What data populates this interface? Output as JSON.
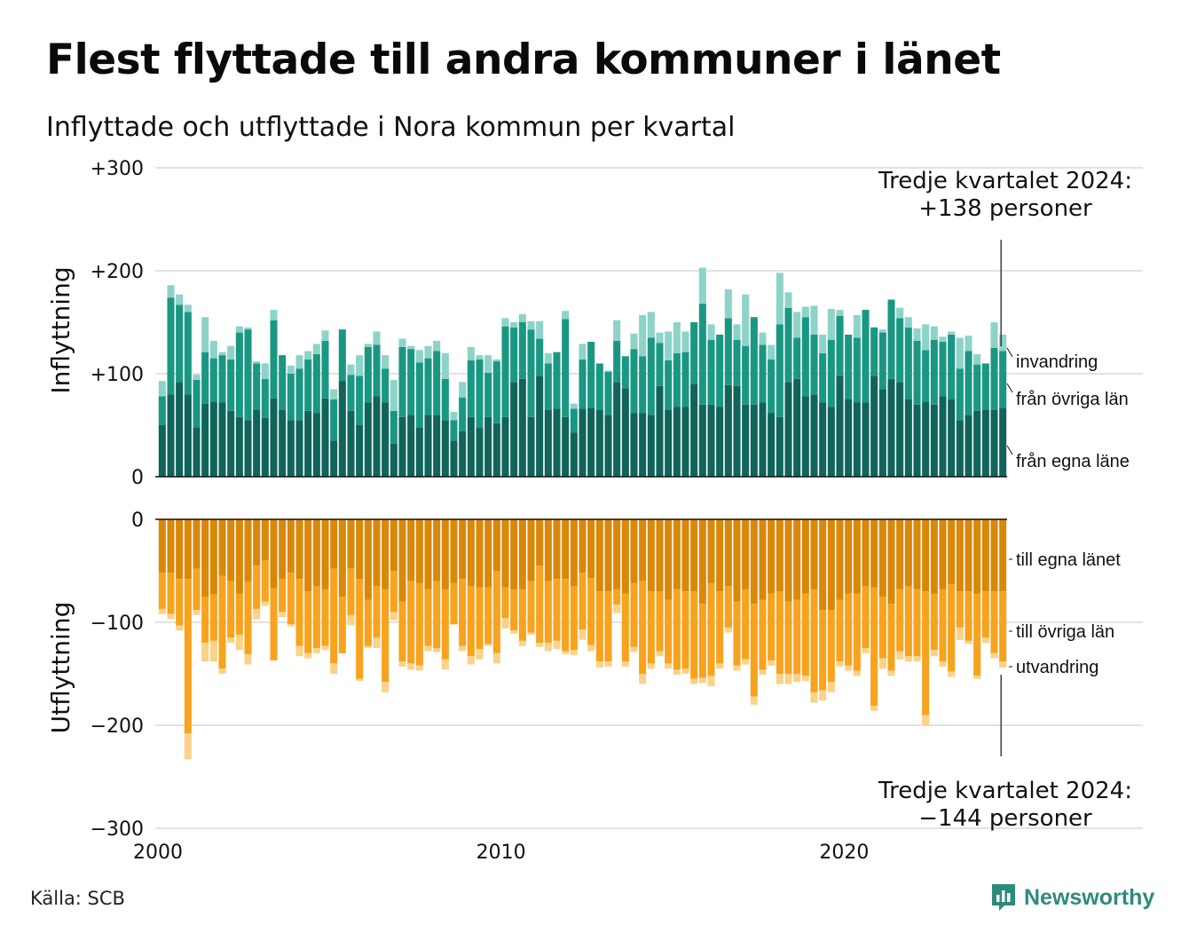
{
  "title": "Flest flyttade till andra kommuner i länet",
  "subtitle": "Inflyttade och utflyttade i Nora kommun per kvartal",
  "source": "Källa: SCB",
  "brand": "Newsworthy",
  "chart_data": {
    "type": "bar",
    "stacked": true,
    "x_start": "2000 Q1",
    "x_end": "2024 Q3",
    "xtick_labels": [
      "2000",
      "2010",
      "2020"
    ],
    "ylabels": {
      "top": "Inflyttning",
      "bottom": "Utflyttning"
    },
    "top_ytick_labels": [
      "+300",
      "+200",
      "+100",
      "0"
    ],
    "bottom_ytick_labels": [
      "0",
      "−100",
      "−200",
      "−300"
    ],
    "top_ylim": [
      0,
      300
    ],
    "bottom_ylim": [
      0,
      -300
    ],
    "grid": true,
    "colors": {
      "in_egna": "#10645a",
      "in_ovriga": "#1a9783",
      "in_invandring": "#8ed3c8",
      "out_egna": "#d9880a",
      "out_ovriga": "#f7a31f",
      "out_utvandring": "#fbd28a"
    },
    "inflow_series": [
      {
        "name": "från egna läne",
        "values": [
          50,
          80,
          92,
          80,
          48,
          71,
          73,
          72,
          64,
          58,
          55,
          65,
          57,
          76,
          65,
          55,
          55,
          64,
          62,
          76,
          35,
          93,
          64,
          50,
          72,
          78,
          72,
          32,
          58,
          60,
          48,
          60,
          60,
          55,
          35,
          44,
          58,
          48,
          58,
          52,
          58,
          92,
          95,
          58,
          98,
          65,
          66,
          58,
          43,
          66,
          67,
          65,
          60,
          92,
          86,
          62,
          62,
          60,
          88,
          65,
          68,
          68,
          90,
          70,
          70,
          68,
          89,
          88,
          70,
          70,
          72,
          62,
          58,
          92,
          95,
          78,
          80,
          72,
          68,
          98,
          75,
          72,
          72,
          98,
          85,
          95,
          92,
          75,
          70,
          73,
          70,
          78,
          75,
          55,
          60,
          64,
          65,
          65,
          67
        ]
      },
      {
        "name": "från övriga län",
        "values": [
          28,
          94,
          75,
          80,
          46,
          50,
          42,
          46,
          50,
          82,
          88,
          45,
          38,
          76,
          53,
          45,
          50,
          50,
          57,
          56,
          40,
          50,
          35,
          48,
          54,
          50,
          33,
          32,
          68,
          64,
          63,
          55,
          62,
          40,
          20,
          33,
          55,
          66,
          43,
          60,
          88,
          53,
          55,
          85,
          36,
          45,
          55,
          95,
          23,
          48,
          64,
          45,
          42,
          40,
          31,
          62,
          55,
          75,
          42,
          48,
          52,
          53,
          60,
          98,
          63,
          70,
          65,
          45,
          57,
          85,
          56,
          52,
          90,
          72,
          40,
          77,
          58,
          48,
          65,
          58,
          63,
          63,
          90,
          47,
          55,
          77,
          62,
          70,
          62,
          50,
          63,
          53,
          63,
          50,
          62,
          45,
          45,
          60,
          55
        ]
      },
      {
        "name": "invandring",
        "values": [
          15,
          12,
          10,
          7,
          5,
          34,
          17,
          3,
          13,
          6,
          2,
          2,
          15,
          10,
          0,
          8,
          13,
          8,
          10,
          10,
          10,
          0,
          10,
          20,
          3,
          13,
          13,
          30,
          8,
          3,
          12,
          12,
          10,
          25,
          8,
          15,
          13,
          4,
          17,
          2,
          8,
          5,
          8,
          8,
          17,
          10,
          0,
          8,
          5,
          15,
          0,
          0,
          1,
          20,
          0,
          15,
          40,
          25,
          10,
          28,
          30,
          20,
          0,
          35,
          15,
          0,
          28,
          15,
          50,
          0,
          12,
          14,
          50,
          15,
          25,
          10,
          28,
          18,
          30,
          6,
          0,
          22,
          0,
          0,
          3,
          0,
          10,
          10,
          12,
          25,
          13,
          5,
          3,
          30,
          15,
          10,
          0,
          25,
          16
        ]
      }
    ],
    "outflow_series": [
      {
        "name": "till egna länet",
        "values": [
          52,
          52,
          58,
          58,
          48,
          75,
          73,
          55,
          60,
          72,
          61,
          45,
          40,
          67,
          58,
          52,
          58,
          70,
          65,
          68,
          48,
          75,
          48,
          58,
          78,
          65,
          68,
          50,
          80,
          60,
          62,
          68,
          60,
          68,
          62,
          58,
          65,
          66,
          66,
          50,
          66,
          68,
          68,
          60,
          45,
          60,
          58,
          58,
          65,
          52,
          57,
          70,
          70,
          68,
          72,
          62,
          60,
          70,
          70,
          78,
          68,
          70,
          70,
          82,
          62,
          70,
          65,
          80,
          68,
          82,
          78,
          72,
          70,
          80,
          78,
          72,
          68,
          88,
          88,
          78,
          72,
          72,
          65,
          66,
          75,
          82,
          68,
          65,
          68,
          70,
          72,
          68,
          63,
          70,
          70,
          72,
          70,
          70,
          70
        ]
      },
      {
        "name": "till övriga län",
        "values": [
          35,
          40,
          45,
          150,
          40,
          45,
          45,
          90,
          55,
          40,
          70,
          42,
          40,
          70,
          32,
          50,
          65,
          60,
          60,
          55,
          92,
          55,
          45,
          97,
          45,
          50,
          90,
          40,
          58,
          80,
          80,
          55,
          65,
          68,
          40,
          65,
          68,
          60,
          55,
          80,
          30,
          40,
          50,
          50,
          75,
          60,
          60,
          70,
          62,
          55,
          65,
          68,
          68,
          15,
          66,
          62,
          90,
          70,
          58,
          62,
          78,
          75,
          85,
          72,
          90,
          70,
          40,
          62,
          68,
          90,
          68,
          65,
          80,
          70,
          72,
          80,
          100,
          78,
          70,
          60,
          70,
          75,
          60,
          115,
          60,
          65,
          60,
          68,
          65,
          120,
          55,
          70,
          85,
          35,
          48,
          80,
          45,
          60,
          68
        ]
      },
      {
        "name": "utvandring",
        "values": [
          5,
          5,
          5,
          25,
          5,
          18,
          20,
          5,
          5,
          15,
          10,
          10,
          4,
          0,
          5,
          2,
          10,
          5,
          5,
          4,
          10,
          0,
          10,
          2,
          2,
          10,
          10,
          8,
          5,
          6,
          5,
          5,
          4,
          10,
          0,
          5,
          8,
          10,
          2,
          10,
          10,
          3,
          5,
          2,
          4,
          8,
          8,
          3,
          5,
          10,
          6,
          6,
          5,
          8,
          5,
          5,
          10,
          5,
          5,
          5,
          5,
          5,
          5,
          5,
          10,
          5,
          5,
          5,
          5,
          8,
          5,
          5,
          10,
          10,
          8,
          5,
          10,
          10,
          10,
          5,
          5,
          5,
          5,
          5,
          10,
          5,
          8,
          5,
          5,
          10,
          6,
          5,
          5,
          12,
          3,
          3,
          5,
          5,
          6
        ]
      }
    ],
    "annotations": {
      "top": "Tredje kvartalet 2024:\n+138 personer",
      "bottom": "Tredje kvartalet 2024:\n−144 personer"
    },
    "legend_top": [
      "invandring",
      "från övriga län",
      "från egna läne"
    ],
    "legend_bottom": [
      "till egna länet",
      "till övriga län",
      "utvandring"
    ]
  }
}
